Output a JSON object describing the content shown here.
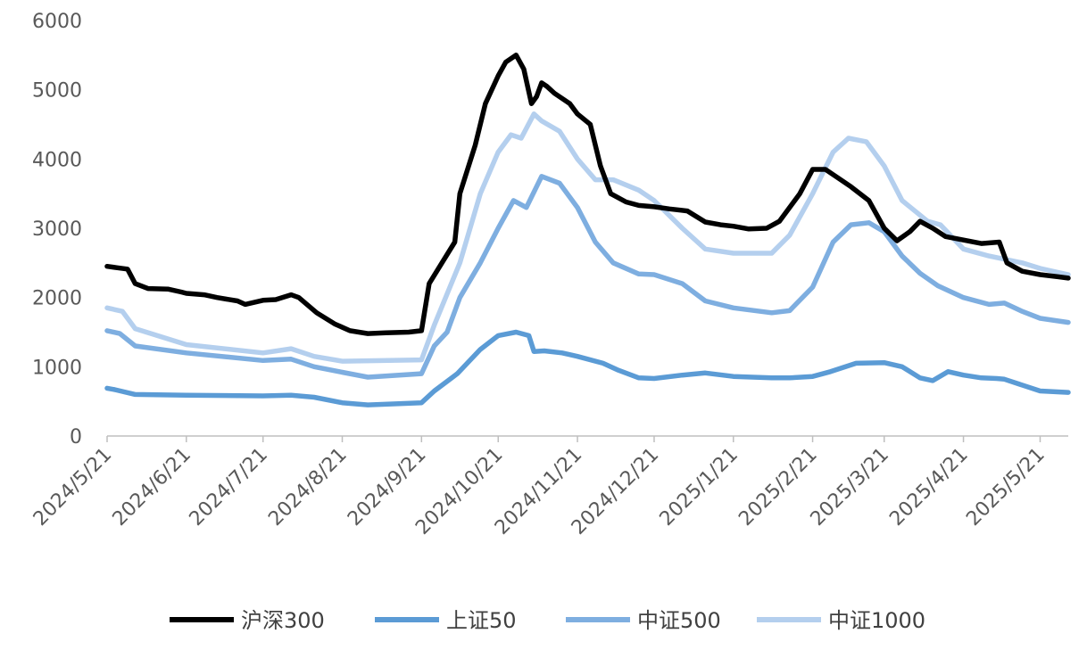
{
  "chart_data": {
    "type": "line",
    "title": "",
    "xlabel": "",
    "ylabel": "",
    "ylim": [
      0,
      6000
    ],
    "yticks": [
      0,
      1000,
      2000,
      3000,
      4000,
      5000,
      6000
    ],
    "ytick_labels": [
      "0",
      "1000",
      "2000",
      "3000",
      "4000",
      "5000",
      "6000"
    ],
    "x_start": "2024-05-21",
    "x_end": "2025-06-01",
    "xticks": [
      "2024-05-21",
      "2024-06-21",
      "2024-07-21",
      "2024-08-21",
      "2024-09-21",
      "2024-10-21",
      "2024-11-21",
      "2024-12-21",
      "2025-01-21",
      "2025-02-21",
      "2025-03-21",
      "2025-04-21",
      "2025-05-21"
    ],
    "xtick_labels": [
      "2024/5/21",
      "2024/6/21",
      "2024/7/21",
      "2024/8/21",
      "2024/9/21",
      "2024/10/21",
      "2024/11/21",
      "2024/12/21",
      "2025/1/21",
      "2025/2/21",
      "2025/3/21",
      "2025/4/21",
      "2025/5/21"
    ],
    "grid": false,
    "legend_position": "bottom",
    "series": [
      {
        "name": "沪深300",
        "color": "#000000",
        "x": [
          "2024-05-21",
          "2024-05-25",
          "2024-05-29",
          "2024-06-01",
          "2024-06-06",
          "2024-06-14",
          "2024-06-19",
          "2024-06-21",
          "2024-06-28",
          "2024-07-03",
          "2024-07-11",
          "2024-07-14",
          "2024-07-21",
          "2024-07-26",
          "2024-08-01",
          "2024-08-04",
          "2024-08-11",
          "2024-08-18",
          "2024-08-24",
          "2024-08-31",
          "2024-09-07",
          "2024-09-16",
          "2024-09-21",
          "2024-09-24",
          "2024-09-29",
          "2024-10-04",
          "2024-10-06",
          "2024-10-12",
          "2024-10-16",
          "2024-10-21",
          "2024-10-24",
          "2024-10-28",
          "2024-10-31",
          "2024-11-03",
          "2024-11-05",
          "2024-11-07",
          "2024-11-09",
          "2024-11-12",
          "2024-11-18",
          "2024-11-21",
          "2024-11-26",
          "2024-11-30",
          "2024-12-04",
          "2024-12-10",
          "2024-12-15",
          "2024-12-21",
          "2024-12-27",
          "2025-01-03",
          "2025-01-10",
          "2025-01-16",
          "2025-01-21",
          "2025-01-27",
          "2025-02-03",
          "2025-02-08",
          "2025-02-16",
          "2025-02-21",
          "2025-02-26",
          "2025-03-04",
          "2025-03-08",
          "2025-03-15",
          "2025-03-21",
          "2025-03-26",
          "2025-03-31",
          "2025-04-04",
          "2025-04-09",
          "2025-04-14",
          "2025-04-21",
          "2025-04-28",
          "2025-05-05",
          "2025-05-08",
          "2025-05-14",
          "2025-05-21",
          "2025-05-28",
          "2025-06-01"
        ],
        "values": [
          2450,
          2430,
          2410,
          2200,
          2130,
          2120,
          2080,
          2060,
          2040,
          2000,
          1950,
          1900,
          1960,
          1970,
          2040,
          2000,
          1780,
          1620,
          1520,
          1480,
          1490,
          1500,
          1520,
          2200,
          2500,
          2800,
          3500,
          4200,
          4800,
          5200,
          5400,
          5500,
          5300,
          4800,
          4900,
          5100,
          5050,
          4950,
          4800,
          4650,
          4500,
          3900,
          3500,
          3380,
          3330,
          3310,
          3280,
          3250,
          3090,
          3050,
          3030,
          2990,
          3000,
          3100,
          3500,
          3850,
          3850,
          3700,
          3600,
          3400,
          3000,
          2820,
          2950,
          3100,
          3000,
          2880,
          2830,
          2780,
          2800,
          2500,
          2380,
          2330,
          2300,
          2280
        ]
      },
      {
        "name": "上证50",
        "color": "#5b9bd5",
        "x": [
          "2024-05-21",
          "2024-05-24",
          "2024-06-01",
          "2024-06-21",
          "2024-07-21",
          "2024-08-01",
          "2024-08-10",
          "2024-08-21",
          "2024-08-31",
          "2024-09-21",
          "2024-09-26",
          "2024-10-05",
          "2024-10-14",
          "2024-10-21",
          "2024-10-28",
          "2024-11-02",
          "2024-11-04",
          "2024-11-08",
          "2024-11-15",
          "2024-11-21",
          "2024-12-01",
          "2024-12-07",
          "2024-12-15",
          "2024-12-21",
          "2025-01-01",
          "2025-01-10",
          "2025-01-21",
          "2025-02-05",
          "2025-02-12",
          "2025-02-21",
          "2025-02-28",
          "2025-03-10",
          "2025-03-21",
          "2025-03-28",
          "2025-04-04",
          "2025-04-09",
          "2025-04-15",
          "2025-04-21",
          "2025-04-28",
          "2025-05-04",
          "2025-05-07",
          "2025-05-21",
          "2025-06-01"
        ],
        "values": [
          690,
          670,
          600,
          590,
          580,
          590,
          560,
          480,
          450,
          480,
          650,
          900,
          1250,
          1450,
          1500,
          1450,
          1220,
          1230,
          1200,
          1150,
          1050,
          950,
          840,
          830,
          880,
          910,
          860,
          840,
          840,
          860,
          930,
          1050,
          1060,
          1000,
          840,
          800,
          930,
          880,
          840,
          830,
          820,
          650,
          630
        ]
      },
      {
        "name": "中证500",
        "color": "#7eaee0",
        "x": [
          "2024-05-21",
          "2024-05-26",
          "2024-06-01",
          "2024-06-21",
          "2024-07-21",
          "2024-08-01",
          "2024-08-10",
          "2024-08-21",
          "2024-08-31",
          "2024-09-21",
          "2024-09-26",
          "2024-10-01",
          "2024-10-06",
          "2024-10-14",
          "2024-10-21",
          "2024-10-27",
          "2024-11-01",
          "2024-11-07",
          "2024-11-14",
          "2024-11-21",
          "2024-11-28",
          "2024-12-05",
          "2024-12-15",
          "2024-12-21",
          "2025-01-01",
          "2025-01-10",
          "2025-01-21",
          "2025-02-05",
          "2025-02-12",
          "2025-02-21",
          "2025-03-01",
          "2025-03-08",
          "2025-03-15",
          "2025-03-21",
          "2025-03-28",
          "2025-04-04",
          "2025-04-11",
          "2025-04-21",
          "2025-05-01",
          "2025-05-07",
          "2025-05-14",
          "2025-05-21",
          "2025-06-01"
        ],
        "values": [
          1520,
          1480,
          1300,
          1200,
          1090,
          1110,
          1000,
          920,
          850,
          900,
          1300,
          1500,
          2000,
          2500,
          3000,
          3400,
          3300,
          3750,
          3650,
          3300,
          2800,
          2500,
          2340,
          2330,
          2200,
          1950,
          1850,
          1780,
          1810,
          2150,
          2800,
          3050,
          3080,
          2950,
          2600,
          2350,
          2170,
          2000,
          1900,
          1920,
          1800,
          1700,
          1640
        ]
      },
      {
        "name": "中证1000",
        "color": "#b4cfee",
        "x": [
          "2024-05-21",
          "2024-05-27",
          "2024-06-01",
          "2024-06-21",
          "2024-07-21",
          "2024-08-01",
          "2024-08-10",
          "2024-08-21",
          "2024-09-21",
          "2024-09-26",
          "2024-10-06",
          "2024-10-14",
          "2024-10-21",
          "2024-10-26",
          "2024-10-30",
          "2024-11-04",
          "2024-11-07",
          "2024-11-14",
          "2024-11-21",
          "2024-11-28",
          "2024-12-05",
          "2024-12-15",
          "2024-12-21",
          "2025-01-01",
          "2025-01-10",
          "2025-01-21",
          "2025-02-05",
          "2025-02-12",
          "2025-02-21",
          "2025-03-01",
          "2025-03-07",
          "2025-03-14",
          "2025-03-21",
          "2025-03-28",
          "2025-04-07",
          "2025-04-12",
          "2025-04-21",
          "2025-05-01",
          "2025-05-14",
          "2025-05-21",
          "2025-06-01"
        ],
        "values": [
          1850,
          1800,
          1550,
          1320,
          1200,
          1260,
          1150,
          1080,
          1100,
          1600,
          2500,
          3500,
          4100,
          4350,
          4300,
          4650,
          4550,
          4400,
          4000,
          3700,
          3700,
          3550,
          3400,
          3000,
          2700,
          2640,
          2640,
          2900,
          3500,
          4100,
          4300,
          4250,
          3900,
          3400,
          3100,
          3050,
          2700,
          2600,
          2500,
          2420,
          2330
        ]
      }
    ]
  }
}
